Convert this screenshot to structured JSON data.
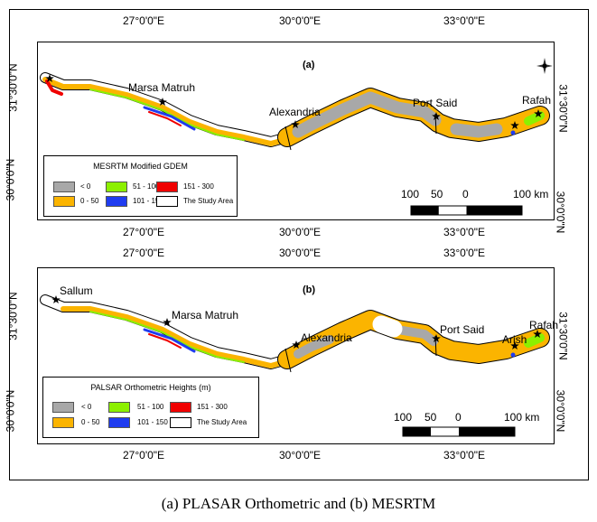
{
  "caption": "(a) PLASAR Orthometric and (b) MESRTM",
  "colors": {
    "below_0": "#a8a8a8",
    "0_50": "#fbb400",
    "51_100": "#8cf000",
    "101_150": "#1f3cf0",
    "151_300": "#f00000",
    "study_area": "#ffffff"
  },
  "axes": {
    "lon_labels": [
      "27°0'0\"E",
      "30°0'0\"E",
      "33°0'0\"E"
    ],
    "lat_labels": [
      "31°30'0\"N",
      "30°0'0\"N"
    ]
  },
  "panels": [
    {
      "label": "(a)",
      "legend_title": "MESRTM Modified GDEM",
      "cities": [
        "Marsa Matruh",
        "Alexandria",
        "Port Said",
        "Rafah"
      ],
      "scale": [
        "100",
        "50",
        "0",
        "100 km"
      ],
      "north_arrow": "compass-rose-icon"
    },
    {
      "label": "(b)",
      "legend_title": "PALSAR Orthometric Heights (m)",
      "cities": [
        "Sallum",
        "Marsa Matruh",
        "Alexandria",
        "Port Said",
        "Arish",
        "Rafah"
      ],
      "scale": [
        "100",
        "50",
        "0",
        "100 km"
      ]
    }
  ],
  "legend_classes": [
    "< 0",
    "0 - 50",
    "51 - 100",
    "101 - 150",
    "151 - 300",
    "The Study Area"
  ]
}
